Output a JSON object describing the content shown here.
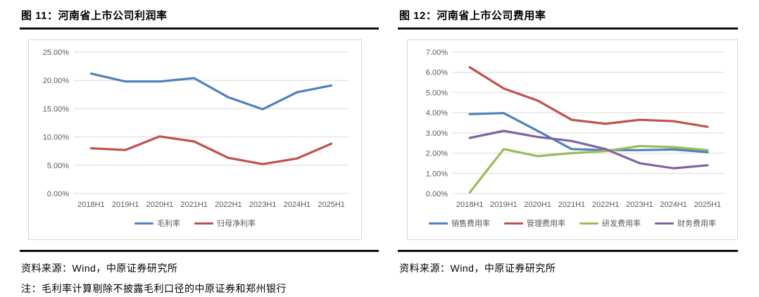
{
  "figures": [
    {
      "title": "图 11：河南省上市公司利润率",
      "source": "资料来源：Wind，中原证券研究所",
      "note": "注：毛利率计算剔除不披露毛利口径的中原证券和郑州银行"
    },
    {
      "title": "图 12：河南省上市公司费用率",
      "source": "资料来源：Wind，中原证券研究所"
    }
  ],
  "chart_data": [
    {
      "type": "line",
      "title": "河南省上市公司利润率",
      "categories": [
        "2018H1",
        "2019H1",
        "2020H1",
        "2021H1",
        "2022H1",
        "2023H1",
        "2024H1",
        "2025H1"
      ],
      "series": [
        {
          "name": "毛利率",
          "color": "#4F81BD",
          "values": [
            21.2,
            19.8,
            19.8,
            20.4,
            17.0,
            14.9,
            17.9,
            19.1
          ]
        },
        {
          "name": "归母净利率",
          "color": "#C0504D",
          "values": [
            8.0,
            7.7,
            10.1,
            9.2,
            6.3,
            5.2,
            6.2,
            8.8
          ]
        }
      ],
      "ylim": [
        0,
        25
      ],
      "ytick_step": 5,
      "ytick_labels": [
        "0.00%",
        "5.00%",
        "10.00%",
        "15.00%",
        "20.00%",
        "25.00%"
      ],
      "xlabel": "",
      "ylabel": "",
      "grid": true,
      "legend_position": "bottom"
    },
    {
      "type": "line",
      "title": "河南省上市公司费用率",
      "categories": [
        "2018H1",
        "2019H1",
        "2020H1",
        "2021H1",
        "2022H1",
        "2023H1",
        "2024H1",
        "2025H1"
      ],
      "series": [
        {
          "name": "销售费用率",
          "color": "#4F81BD",
          "values": [
            3.93,
            3.98,
            3.1,
            2.2,
            2.15,
            2.15,
            2.18,
            2.05
          ]
        },
        {
          "name": "管理费用率",
          "color": "#C0504D",
          "values": [
            6.25,
            5.2,
            4.6,
            3.65,
            3.45,
            3.65,
            3.58,
            3.3
          ]
        },
        {
          "name": "研发费用率",
          "color": "#9BBB59",
          "values": [
            0.05,
            2.2,
            1.85,
            2.0,
            2.1,
            2.35,
            2.3,
            2.15
          ]
        },
        {
          "name": "财务费用率",
          "color": "#8064A2",
          "values": [
            2.75,
            3.1,
            2.8,
            2.6,
            2.2,
            1.5,
            1.25,
            1.4
          ]
        }
      ],
      "ylim": [
        0,
        7
      ],
      "ytick_step": 1,
      "ytick_labels": [
        "0.00%",
        "1.00%",
        "2.00%",
        "3.00%",
        "4.00%",
        "5.00%",
        "6.00%",
        "7.00%"
      ],
      "xlabel": "",
      "ylabel": "",
      "grid": true,
      "legend_position": "bottom"
    }
  ],
  "style": {
    "gridline_color": "#d9d9d9",
    "axis_label_color": "#595959",
    "rule_color": "#0d0d0d",
    "chart_border_color": "#d7d7d7"
  }
}
